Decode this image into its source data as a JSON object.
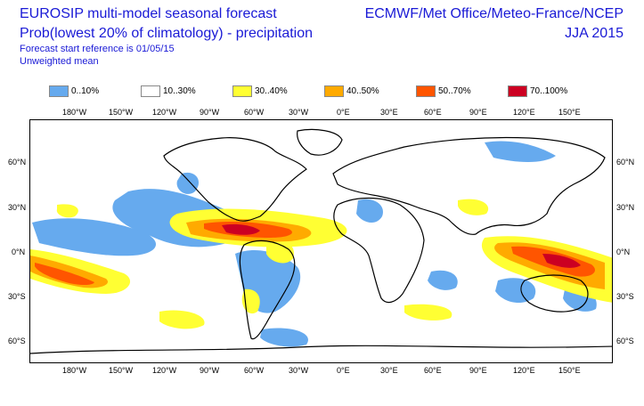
{
  "header": {
    "title_line1": "EUROSIP multi-model seasonal forecast",
    "title_line2": "Prob(lowest 20% of climatology) - precipitation",
    "title_line3": "Forecast start reference is 01/05/15",
    "title_line4": "Unweighted mean",
    "organizations": "ECMWF/Met Office/Meteo-France/NCEP",
    "season": "JJA 2015"
  },
  "legend": [
    {
      "label": "0..10%",
      "color": "#66aaee"
    },
    {
      "label": "10..30%",
      "color": "#ffffff"
    },
    {
      "label": "30..40%",
      "color": "#ffff33"
    },
    {
      "label": "40..50%",
      "color": "#ffaa00"
    },
    {
      "label": "50..70%",
      "color": "#ff5500"
    },
    {
      "label": "70..100%",
      "color": "#cc0022"
    }
  ],
  "axes": {
    "lon_labels": [
      "180°W",
      "150°W",
      "120°W",
      "90°W",
      "60°W",
      "30°W",
      "0°E",
      "30°E",
      "60°E",
      "90°E",
      "120°E",
      "150°E"
    ],
    "lat_labels": [
      "60°N",
      "30°N",
      "0°N",
      "30°S",
      "60°S"
    ]
  }
}
